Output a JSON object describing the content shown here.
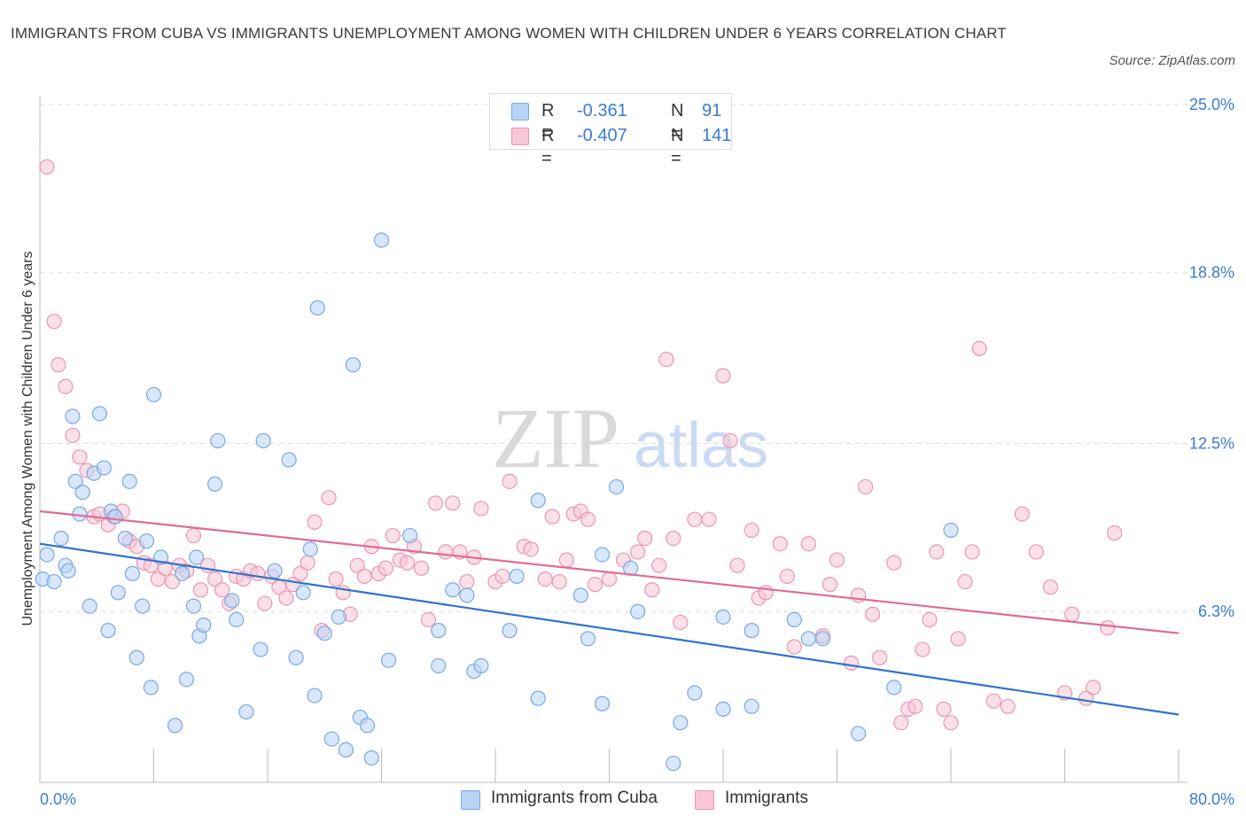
{
  "title": "IMMIGRANTS FROM CUBA VS IMMIGRANTS UNEMPLOYMENT AMONG WOMEN WITH CHILDREN UNDER 6 YEARS CORRELATION CHART",
  "source": "Source: ZipAtlas.com",
  "watermark": {
    "zip": "ZIP",
    "atlas": "atlas"
  },
  "legend": {
    "r_label": "R =",
    "n_label": "N =",
    "rows": [
      {
        "r": "-0.361",
        "n": "91"
      },
      {
        "r": "-0.407",
        "n": "141"
      }
    ]
  },
  "bottom_legend": [
    "Immigrants from Cuba",
    "Immigrants"
  ],
  "colors": {
    "blue_fill": "#b8d3f5",
    "blue_stroke": "#7aa8e0",
    "blue_line": "#2f72d0",
    "pink_fill": "#f8c6d6",
    "pink_stroke": "#e996b2",
    "pink_line": "#e06b95",
    "tick_label": "#3a7bd5",
    "grid": "#dcdcdc"
  },
  "chart_data": {
    "type": "scatter",
    "title": "IMMIGRANTS FROM CUBA VS IMMIGRANTS UNEMPLOYMENT AMONG WOMEN WITH CHILDREN UNDER 6 YEARS CORRELATION CHART",
    "xlabel": "",
    "ylabel": "Unemployment Among Women with Children Under 6 years",
    "xlim": [
      0,
      80
    ],
    "ylim": [
      0,
      25
    ],
    "x_tick_labels": [
      "0.0%",
      "80.0%"
    ],
    "y_tick_labels": [
      "6.3%",
      "12.5%",
      "18.8%",
      "25.0%"
    ],
    "y_tick_values": [
      6.3,
      12.5,
      18.8,
      25.0
    ],
    "grid": "horizontal dashed",
    "legend_position": "top-center",
    "series": [
      {
        "name": "Immigrants from Cuba",
        "color": "blue",
        "trend": {
          "x": [
            0,
            80
          ],
          "y": [
            8.8,
            2.5
          ]
        },
        "points": [
          [
            0.2,
            7.5
          ],
          [
            0.5,
            8.4
          ],
          [
            1.0,
            7.4
          ],
          [
            1.5,
            9.0
          ],
          [
            1.8,
            8.0
          ],
          [
            2.0,
            7.8
          ],
          [
            2.3,
            13.5
          ],
          [
            2.5,
            11.1
          ],
          [
            2.8,
            9.9
          ],
          [
            3.0,
            10.7
          ],
          [
            3.5,
            6.5
          ],
          [
            3.8,
            11.4
          ],
          [
            4.2,
            13.6
          ],
          [
            4.5,
            11.6
          ],
          [
            4.8,
            5.6
          ],
          [
            5.0,
            10.0
          ],
          [
            5.3,
            9.8
          ],
          [
            5.5,
            7.0
          ],
          [
            6.0,
            9.0
          ],
          [
            6.3,
            11.1
          ],
          [
            6.5,
            7.7
          ],
          [
            6.8,
            4.6
          ],
          [
            7.2,
            6.5
          ],
          [
            7.5,
            8.9
          ],
          [
            7.8,
            3.5
          ],
          [
            8.0,
            14.3
          ],
          [
            8.5,
            8.3
          ],
          [
            9.5,
            2.1
          ],
          [
            10.0,
            7.7
          ],
          [
            10.3,
            3.8
          ],
          [
            10.8,
            6.5
          ],
          [
            11.0,
            8.3
          ],
          [
            11.2,
            5.4
          ],
          [
            11.5,
            5.8
          ],
          [
            12.3,
            11.0
          ],
          [
            12.5,
            12.6
          ],
          [
            13.5,
            6.7
          ],
          [
            13.8,
            6.0
          ],
          [
            14.5,
            2.6
          ],
          [
            15.5,
            4.9
          ],
          [
            15.7,
            12.6
          ],
          [
            16.5,
            7.8
          ],
          [
            17.5,
            11.9
          ],
          [
            18.0,
            4.6
          ],
          [
            18.5,
            7.0
          ],
          [
            19.0,
            8.6
          ],
          [
            19.3,
            3.2
          ],
          [
            19.5,
            17.5
          ],
          [
            20.0,
            5.5
          ],
          [
            20.5,
            1.6
          ],
          [
            21.0,
            6.1
          ],
          [
            21.5,
            1.2
          ],
          [
            22.0,
            15.4
          ],
          [
            22.5,
            2.4
          ],
          [
            23.0,
            2.1
          ],
          [
            23.3,
            0.9
          ],
          [
            24.0,
            20.0
          ],
          [
            24.5,
            4.5
          ],
          [
            26.0,
            9.1
          ],
          [
            28.0,
            5.6
          ],
          [
            28.0,
            4.3
          ],
          [
            29.0,
            7.1
          ],
          [
            30.0,
            6.9
          ],
          [
            30.5,
            4.1
          ],
          [
            31.0,
            4.3
          ],
          [
            33.0,
            5.6
          ],
          [
            33.5,
            7.6
          ],
          [
            35.0,
            10.4
          ],
          [
            35.0,
            3.1
          ],
          [
            38.0,
            6.9
          ],
          [
            38.5,
            5.3
          ],
          [
            39.5,
            8.4
          ],
          [
            39.5,
            2.9
          ],
          [
            40.5,
            10.9
          ],
          [
            41.5,
            7.9
          ],
          [
            42.0,
            6.3
          ],
          [
            44.5,
            0.7
          ],
          [
            45.0,
            2.2
          ],
          [
            46.0,
            3.3
          ],
          [
            48.0,
            2.7
          ],
          [
            48.0,
            6.1
          ],
          [
            50.0,
            5.6
          ],
          [
            50.0,
            2.8
          ],
          [
            53.0,
            6.0
          ],
          [
            54.0,
            5.3
          ],
          [
            55.0,
            5.3
          ],
          [
            57.5,
            1.8
          ],
          [
            60.0,
            3.5
          ],
          [
            64.0,
            9.3
          ]
        ]
      },
      {
        "name": "Immigrants",
        "color": "pink",
        "trend": {
          "x": [
            0,
            80
          ],
          "y": [
            10.0,
            5.5
          ]
        },
        "points": [
          [
            0.5,
            22.7
          ],
          [
            1.0,
            17.0
          ],
          [
            1.3,
            15.4
          ],
          [
            1.8,
            14.6
          ],
          [
            2.3,
            12.8
          ],
          [
            2.8,
            12.0
          ],
          [
            3.3,
            11.5
          ],
          [
            3.8,
            9.8
          ],
          [
            4.2,
            9.9
          ],
          [
            4.8,
            9.5
          ],
          [
            5.2,
            9.8
          ],
          [
            5.8,
            10.0
          ],
          [
            6.3,
            8.9
          ],
          [
            6.8,
            8.7
          ],
          [
            7.3,
            8.1
          ],
          [
            7.8,
            8.0
          ],
          [
            8.3,
            7.5
          ],
          [
            8.8,
            7.9
          ],
          [
            9.3,
            7.4
          ],
          [
            9.8,
            8.0
          ],
          [
            10.3,
            7.8
          ],
          [
            10.8,
            9.1
          ],
          [
            11.3,
            7.1
          ],
          [
            11.8,
            8.0
          ],
          [
            12.3,
            7.5
          ],
          [
            12.8,
            7.1
          ],
          [
            13.3,
            6.6
          ],
          [
            13.8,
            7.6
          ],
          [
            14.3,
            7.5
          ],
          [
            14.8,
            7.8
          ],
          [
            15.3,
            7.7
          ],
          [
            15.8,
            6.6
          ],
          [
            16.3,
            7.6
          ],
          [
            16.8,
            7.2
          ],
          [
            17.3,
            6.8
          ],
          [
            17.8,
            7.3
          ],
          [
            18.3,
            7.7
          ],
          [
            18.8,
            8.1
          ],
          [
            19.3,
            9.6
          ],
          [
            19.8,
            5.6
          ],
          [
            20.3,
            10.5
          ],
          [
            20.8,
            7.5
          ],
          [
            21.3,
            7.0
          ],
          [
            21.8,
            6.2
          ],
          [
            22.3,
            8.0
          ],
          [
            22.8,
            7.6
          ],
          [
            23.3,
            8.7
          ],
          [
            23.8,
            7.7
          ],
          [
            24.3,
            7.9
          ],
          [
            24.8,
            9.1
          ],
          [
            25.3,
            8.2
          ],
          [
            25.8,
            8.1
          ],
          [
            26.3,
            8.7
          ],
          [
            26.8,
            7.9
          ],
          [
            27.3,
            6.0
          ],
          [
            27.8,
            10.3
          ],
          [
            28.5,
            8.5
          ],
          [
            29.0,
            10.3
          ],
          [
            29.5,
            8.5
          ],
          [
            30.0,
            7.4
          ],
          [
            30.5,
            8.3
          ],
          [
            31.0,
            10.1
          ],
          [
            32.0,
            7.4
          ],
          [
            32.5,
            7.6
          ],
          [
            33.0,
            11.1
          ],
          [
            34.0,
            8.7
          ],
          [
            34.5,
            8.6
          ],
          [
            35.5,
            7.5
          ],
          [
            36.0,
            9.8
          ],
          [
            36.5,
            7.4
          ],
          [
            37.0,
            8.2
          ],
          [
            37.5,
            9.9
          ],
          [
            38.0,
            10.0
          ],
          [
            38.5,
            9.7
          ],
          [
            39.0,
            7.3
          ],
          [
            40.0,
            7.5
          ],
          [
            41.0,
            8.2
          ],
          [
            42.0,
            8.5
          ],
          [
            42.5,
            9.0
          ],
          [
            43.0,
            7.1
          ],
          [
            43.5,
            8.0
          ],
          [
            44.0,
            15.6
          ],
          [
            44.5,
            9.0
          ],
          [
            45.0,
            5.9
          ],
          [
            46.0,
            9.7
          ],
          [
            47.0,
            9.7
          ],
          [
            48.0,
            15.0
          ],
          [
            48.5,
            12.6
          ],
          [
            49.0,
            8.0
          ],
          [
            50.0,
            9.3
          ],
          [
            50.5,
            6.8
          ],
          [
            51.0,
            7.0
          ],
          [
            52.0,
            8.8
          ],
          [
            52.5,
            7.6
          ],
          [
            53.0,
            5.0
          ],
          [
            54.0,
            8.8
          ],
          [
            55.0,
            5.4
          ],
          [
            55.5,
            7.3
          ],
          [
            56.0,
            8.2
          ],
          [
            57.0,
            4.4
          ],
          [
            57.5,
            6.9
          ],
          [
            58.0,
            10.9
          ],
          [
            58.5,
            6.2
          ],
          [
            59.0,
            4.6
          ],
          [
            60.0,
            8.1
          ],
          [
            60.5,
            2.2
          ],
          [
            61.0,
            2.7
          ],
          [
            61.5,
            2.8
          ],
          [
            62.0,
            4.9
          ],
          [
            62.5,
            6.0
          ],
          [
            63.0,
            8.5
          ],
          [
            63.5,
            2.7
          ],
          [
            64.0,
            2.2
          ],
          [
            64.5,
            5.3
          ],
          [
            65.0,
            7.4
          ],
          [
            65.5,
            8.5
          ],
          [
            66.0,
            16.0
          ],
          [
            67.0,
            3.0
          ],
          [
            68.0,
            2.8
          ],
          [
            69.0,
            9.9
          ],
          [
            70.0,
            8.5
          ],
          [
            71.0,
            7.2
          ],
          [
            72.0,
            3.3
          ],
          [
            72.5,
            6.2
          ],
          [
            73.5,
            3.1
          ],
          [
            74.0,
            3.5
          ],
          [
            75.0,
            5.7
          ],
          [
            75.5,
            9.2
          ]
        ]
      }
    ]
  }
}
